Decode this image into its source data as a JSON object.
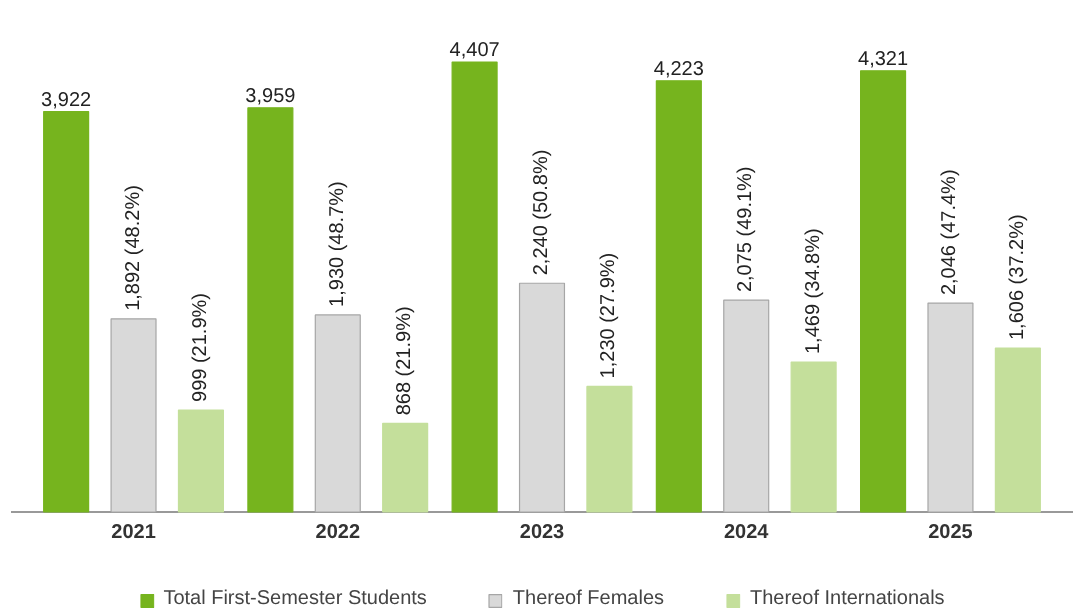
{
  "chart_data": {
    "type": "bar",
    "categories": [
      "2021",
      "2022",
      "2023",
      "2024",
      "2025"
    ],
    "series": [
      {
        "name": "Total First-Semester Students",
        "color": "#76b41e",
        "values": [
          3922,
          3959,
          4407,
          4223,
          4321
        ],
        "value_labels": [
          "3,922",
          "3,959",
          "4,407",
          "4,223",
          "4,321"
        ]
      },
      {
        "name": "Thereof Females",
        "color": "#d9d9d9",
        "values": [
          1892,
          1930,
          2240,
          2075,
          2046
        ],
        "value_labels": [
          "1,892 (48.2%)",
          "1,930 (48.7%)",
          "2,240 (50.8%)",
          "2,075 (49.1%)",
          "2,046 (47.4%)"
        ]
      },
      {
        "name": "Thereof Internationals",
        "color": "#c4df9b",
        "values": [
          999,
          868,
          1230,
          1469,
          1606
        ],
        "value_labels": [
          "999 (21.9%)",
          "868 (21.9%)",
          "1,230 (27.9%)",
          "1,469 (34.8%)",
          "1,606 (37.2%)"
        ]
      }
    ],
    "legend": "bottom",
    "grid": false
  }
}
